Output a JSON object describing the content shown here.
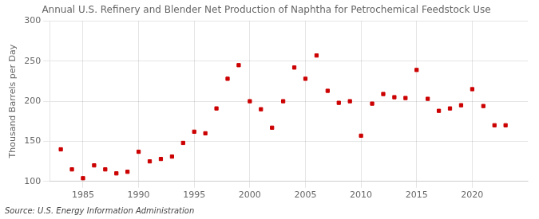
{
  "chart_data": {
    "type": "scatter",
    "title": "Annual U.S. Refinery and Blender Net Production of Naphtha for Petrochemical Feedstock Use",
    "y_label": "Thousand Barrels per Day",
    "annotation": "Source: U.S. Energy Information Administration",
    "x": [
      1983,
      1984,
      1985,
      1986,
      1987,
      1988,
      1989,
      1990,
      1991,
      1992,
      1993,
      1994,
      1995,
      1996,
      1997,
      1998,
      1999,
      2000,
      2001,
      2002,
      2003,
      2004,
      2005,
      2006,
      2007,
      2008,
      2009,
      2010,
      2011,
      2012,
      2013,
      2014,
      2015,
      2016,
      2017,
      2018,
      2019,
      2020,
      2021,
      2022,
      2023
    ],
    "values": [
      140,
      115,
      104,
      120,
      115,
      110,
      112,
      137,
      125,
      128,
      131,
      148,
      162,
      160,
      191,
      228,
      245,
      200,
      190,
      167,
      200,
      242,
      228,
      257,
      213,
      198,
      200,
      157,
      197,
      209,
      205,
      204,
      239,
      203,
      188,
      191,
      195,
      215,
      194,
      170,
      170
    ],
    "color": "#cc0000",
    "marker": "square",
    "xlim": [
      1982,
      2025
    ],
    "xticks": [
      1985,
      1990,
      1995,
      2000,
      2005,
      2010,
      2015,
      2020
    ],
    "ylim": [
      100,
      300
    ],
    "yticks": [
      100,
      150,
      200,
      250,
      300
    ],
    "grid": true
  }
}
